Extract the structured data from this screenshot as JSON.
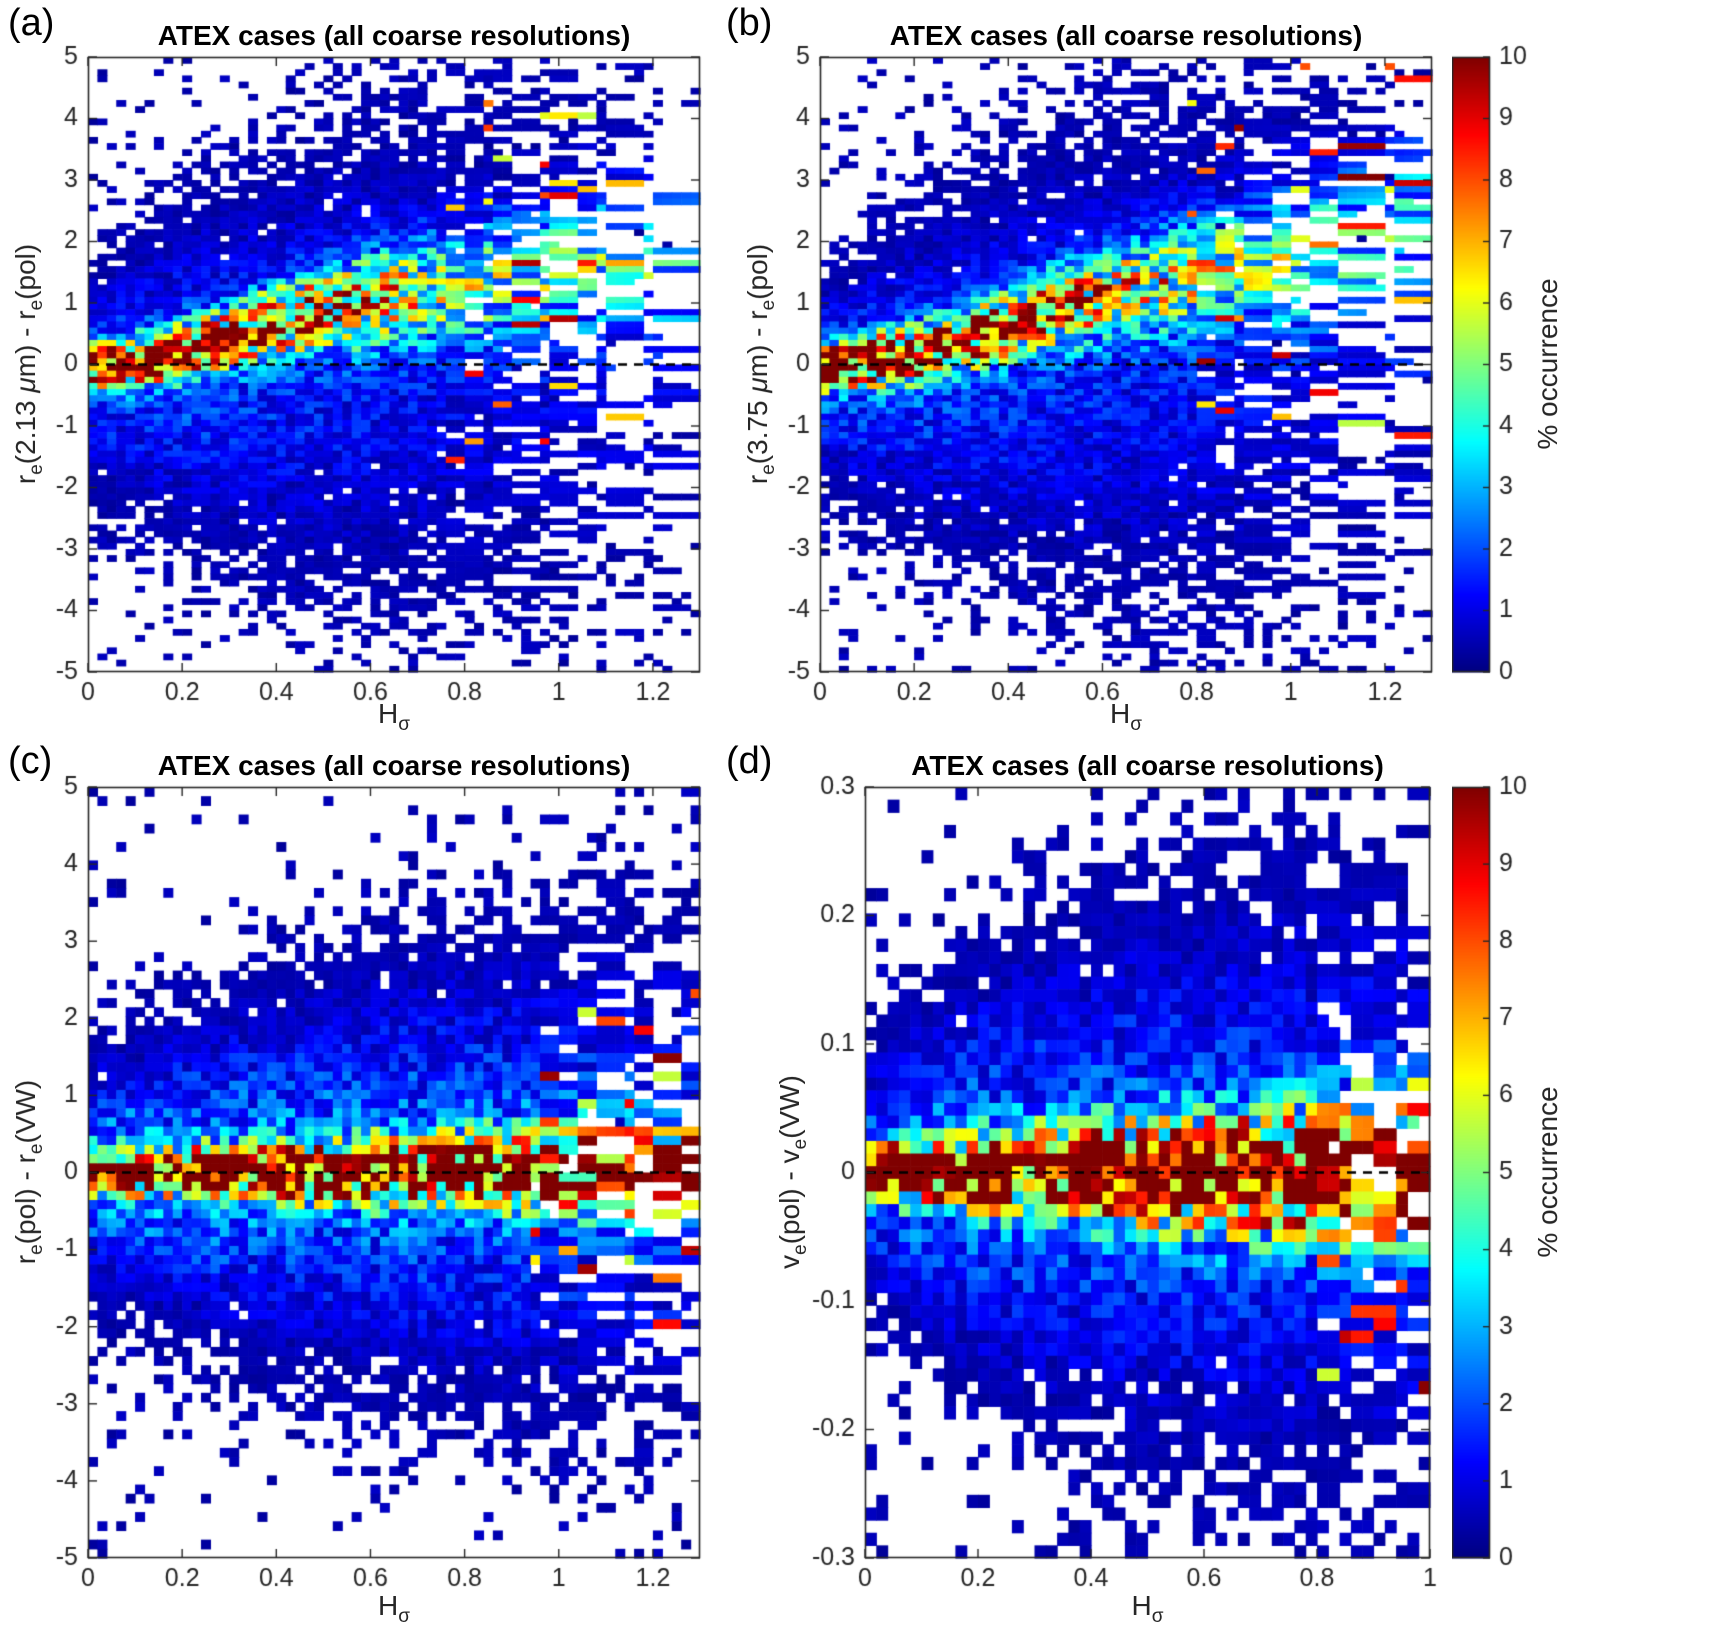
{
  "figure": {
    "background": "#ffffff",
    "colorbar": {
      "label": "% occurrence",
      "min": 0,
      "max": 10,
      "tick_vals": [
        0,
        1,
        2,
        3,
        4,
        5,
        6,
        7,
        8,
        9,
        10
      ],
      "tick_labels": [
        "0",
        "1",
        "2",
        "3",
        "4",
        "5",
        "6",
        "7",
        "8",
        "9",
        "10"
      ],
      "colormap": "jet"
    }
  },
  "chart_data": [
    {
      "type": "heatmap",
      "panel": "(a)",
      "title": "ATEX cases (all coarse resolutions)",
      "xlabel": "H_σ",
      "ylabel": "r_e(2.13 μm) - r_e(pol)",
      "xlabel_segments": [
        {
          "t": "H"
        },
        {
          "s": "σ"
        }
      ],
      "ylabel_segments": [
        {
          "t": "r"
        },
        {
          "s": "e"
        },
        {
          "t": "(2.13 "
        },
        {
          "i": "μ"
        },
        {
          "t": "m) - r"
        },
        {
          "s": "e"
        },
        {
          "t": "(pol)"
        }
      ],
      "xlim": [
        0,
        1.3
      ],
      "ylim": [
        -5,
        5
      ],
      "xtick_vals": [
        0,
        0.2,
        0.4,
        0.6,
        0.8,
        1,
        1.2
      ],
      "xtick_labels": [
        "0",
        "0.2",
        "0.4",
        "0.6",
        "0.8",
        "1",
        "1.2"
      ],
      "ytick_vals": [
        -5,
        -4,
        -3,
        -2,
        -1,
        0,
        1,
        2,
        3,
        4,
        5
      ],
      "ytick_labels": [
        "-5",
        "-4",
        "-3",
        "-2",
        "-1",
        "0",
        "1",
        "2",
        "3",
        "4",
        "5"
      ],
      "zero_line_y": 0,
      "color_scale": {
        "min": 0,
        "max": 10,
        "label": "% occurrence",
        "colormap": "jet"
      },
      "bins": {
        "nx": 65,
        "ny": 100
      },
      "seed": 7,
      "distribution": {
        "ridge_center": [
          [
            0,
            -0.05
          ],
          [
            0.15,
            0.1
          ],
          [
            0.3,
            0.45
          ],
          [
            0.45,
            0.8
          ],
          [
            0.6,
            1.05
          ],
          [
            0.8,
            1.3
          ],
          [
            1.0,
            1.55
          ],
          [
            1.3,
            1.9
          ]
        ],
        "peak_pct": [
          [
            0,
            10
          ],
          [
            0.1,
            10
          ],
          [
            0.25,
            8.5
          ],
          [
            0.4,
            7
          ],
          [
            0.55,
            5.5
          ],
          [
            0.7,
            4
          ],
          [
            0.9,
            3
          ],
          [
            1.3,
            2.5
          ]
        ],
        "core_sigma": [
          [
            0,
            0.2
          ],
          [
            0.3,
            0.3
          ],
          [
            0.6,
            0.5
          ],
          [
            1.3,
            0.9
          ]
        ],
        "cloud_pct": [
          [
            0,
            1.8
          ],
          [
            0.4,
            1.4
          ],
          [
            0.8,
            1.0
          ],
          [
            1.3,
            0.8
          ]
        ],
        "cloud_sigma": [
          [
            0,
            0.9
          ],
          [
            0.2,
            1.5
          ],
          [
            0.5,
            2.1
          ],
          [
            0.9,
            2.5
          ],
          [
            1.3,
            2.7
          ]
        ],
        "cloud_center_scale": 0.3,
        "cloud_center_shift": -0.2,
        "sparse_above": 0.58
      }
    },
    {
      "type": "heatmap",
      "panel": "(b)",
      "title": "ATEX cases (all coarse resolutions)",
      "xlabel": "H_σ",
      "ylabel": "r_e(3.75 μm) - r_e(pol)",
      "xlabel_segments": [
        {
          "t": "H"
        },
        {
          "s": "σ"
        }
      ],
      "ylabel_segments": [
        {
          "t": "r"
        },
        {
          "s": "e"
        },
        {
          "t": "(3.75 "
        },
        {
          "i": "μ"
        },
        {
          "t": "m) - r"
        },
        {
          "s": "e"
        },
        {
          "t": "(pol)"
        }
      ],
      "xlim": [
        0,
        1.3
      ],
      "ylim": [
        -5,
        5
      ],
      "xtick_vals": [
        0,
        0.2,
        0.4,
        0.6,
        0.8,
        1,
        1.2
      ],
      "xtick_labels": [
        "0",
        "0.2",
        "0.4",
        "0.6",
        "0.8",
        "1",
        "1.2"
      ],
      "ytick_vals": [
        -5,
        -4,
        -3,
        -2,
        -1,
        0,
        1,
        2,
        3,
        4,
        5
      ],
      "ytick_labels": [
        "-5",
        "-4",
        "-3",
        "-2",
        "-1",
        "0",
        "1",
        "2",
        "3",
        "4",
        "5"
      ],
      "zero_line_y": 0,
      "color_scale": {
        "min": 0,
        "max": 10,
        "label": "% occurrence",
        "colormap": "jet"
      },
      "bins": {
        "nx": 65,
        "ny": 100
      },
      "seed": 13,
      "distribution": {
        "ridge_center": [
          [
            0,
            -0.05
          ],
          [
            0.2,
            0.15
          ],
          [
            0.35,
            0.5
          ],
          [
            0.5,
            0.9
          ],
          [
            0.7,
            1.3
          ],
          [
            0.9,
            1.6
          ],
          [
            1.3,
            2.2
          ]
        ],
        "peak_pct": [
          [
            0,
            10
          ],
          [
            0.15,
            10
          ],
          [
            0.3,
            8
          ],
          [
            0.5,
            6
          ],
          [
            0.7,
            4.5
          ],
          [
            1.0,
            3
          ],
          [
            1.3,
            2.5
          ]
        ],
        "core_sigma": [
          [
            0,
            0.22
          ],
          [
            0.4,
            0.35
          ],
          [
            0.8,
            0.6
          ],
          [
            1.3,
            1.0
          ]
        ],
        "cloud_pct": [
          [
            0,
            1.8
          ],
          [
            0.5,
            1.3
          ],
          [
            1.3,
            0.8
          ]
        ],
        "cloud_sigma": [
          [
            0,
            0.9
          ],
          [
            0.3,
            1.7
          ],
          [
            0.6,
            2.2
          ],
          [
            1.3,
            2.8
          ]
        ],
        "cloud_center_scale": 0.3,
        "cloud_center_shift": -0.25,
        "sparse_above": 0.6
      }
    },
    {
      "type": "heatmap",
      "panel": "(c)",
      "title": "ATEX cases (all coarse resolutions)",
      "xlabel": "H_σ",
      "ylabel": "r_e(pol) - r_e(VW)",
      "xlabel_segments": [
        {
          "t": "H"
        },
        {
          "s": "σ"
        }
      ],
      "ylabel_segments": [
        {
          "t": "r"
        },
        {
          "s": "e"
        },
        {
          "t": "(pol) - r"
        },
        {
          "s": "e"
        },
        {
          "t": "(VW)"
        }
      ],
      "xlim": [
        0,
        1.3
      ],
      "ylim": [
        -5,
        5
      ],
      "xtick_vals": [
        0,
        0.2,
        0.4,
        0.6,
        0.8,
        1,
        1.2
      ],
      "xtick_labels": [
        "0",
        "0.2",
        "0.4",
        "0.6",
        "0.8",
        "1",
        "1.2"
      ],
      "ytick_vals": [
        -5,
        -4,
        -3,
        -2,
        -1,
        0,
        1,
        2,
        3,
        4,
        5
      ],
      "ytick_labels": [
        "-5",
        "-4",
        "-3",
        "-2",
        "-1",
        "0",
        "1",
        "2",
        "3",
        "4",
        "5"
      ],
      "zero_line_y": 0,
      "color_scale": {
        "min": 0,
        "max": 10,
        "label": "% occurrence",
        "colormap": "jet"
      },
      "bins": {
        "nx": 65,
        "ny": 84
      },
      "seed": 21,
      "distribution": {
        "ridge_center": [
          [
            0,
            0
          ],
          [
            1.3,
            0.05
          ]
        ],
        "peak_pct": [
          [
            0,
            10
          ],
          [
            0.5,
            9.5
          ],
          [
            1.0,
            9
          ],
          [
            1.3,
            8.5
          ]
        ],
        "core_sigma": [
          [
            0,
            0.15
          ],
          [
            0.4,
            0.22
          ],
          [
            0.8,
            0.3
          ],
          [
            1.3,
            0.38
          ]
        ],
        "cloud_pct": [
          [
            0,
            2.5
          ],
          [
            0.6,
            2.0
          ],
          [
            1.3,
            1.6
          ]
        ],
        "cloud_sigma": [
          [
            0,
            0.8
          ],
          [
            0.3,
            1.2
          ],
          [
            0.7,
            1.6
          ],
          [
            1.3,
            1.9
          ]
        ],
        "cloud_center_scale": 1,
        "cloud_center_shift": 0,
        "sparse_above": 0.72
      }
    },
    {
      "type": "heatmap",
      "panel": "(d)",
      "title": "ATEX cases (all coarse resolutions)",
      "xlabel": "H_σ",
      "ylabel": "v_e(pol) - v_e(VW)",
      "xlabel_segments": [
        {
          "t": "H"
        },
        {
          "s": "σ"
        }
      ],
      "ylabel_segments": [
        {
          "t": "v"
        },
        {
          "s": "e"
        },
        {
          "t": "(pol) - v"
        },
        {
          "s": "e"
        },
        {
          "t": "(VW)"
        }
      ],
      "xlim": [
        0,
        1
      ],
      "ylim": [
        -0.3,
        0.3
      ],
      "xtick_vals": [
        0,
        0.2,
        0.4,
        0.6,
        0.8,
        1
      ],
      "xtick_labels": [
        "0",
        "0.2",
        "0.4",
        "0.6",
        "0.8",
        "1"
      ],
      "ytick_vals": [
        -0.3,
        -0.2,
        -0.1,
        0,
        0.1,
        0.2,
        0.3
      ],
      "ytick_labels": [
        "-0.3",
        "-0.2",
        "-0.1",
        "0",
        "0.1",
        "0.2",
        "0.3"
      ],
      "zero_line_y": 0,
      "color_scale": {
        "min": 0,
        "max": 10,
        "label": "% occurrence",
        "colormap": "jet"
      },
      "bins": {
        "nx": 50,
        "ny": 61
      },
      "seed": 33,
      "distribution": {
        "ridge_center": [
          [
            0,
            0
          ],
          [
            1,
            0
          ]
        ],
        "peak_pct": [
          [
            0,
            10
          ],
          [
            0.5,
            9.5
          ],
          [
            1,
            9
          ]
        ],
        "core_sigma": [
          [
            0,
            0.012
          ],
          [
            0.3,
            0.02
          ],
          [
            0.6,
            0.028
          ],
          [
            1,
            0.035
          ]
        ],
        "cloud_pct": [
          [
            0,
            2.2
          ],
          [
            0.5,
            1.8
          ],
          [
            1,
            1.5
          ]
        ],
        "cloud_sigma": [
          [
            0,
            0.05
          ],
          [
            0.2,
            0.09
          ],
          [
            0.5,
            0.12
          ],
          [
            1,
            0.14
          ]
        ],
        "cloud_center_scale": 1,
        "cloud_center_shift": 0,
        "sparse_above": 0.78
      }
    }
  ]
}
